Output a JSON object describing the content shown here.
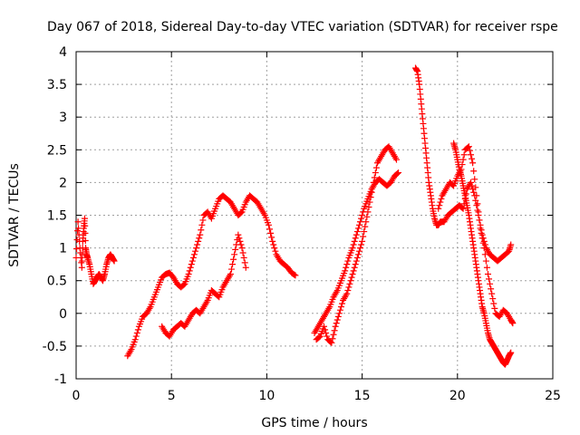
{
  "chart_data": {
    "type": "scatter",
    "title": "Day 067 of 2018, Sidereal Day-to-day VTEC variation (SDTVAR) for receiver rspe",
    "xlabel": "GPS time / hours",
    "ylabel": "SDTVAR / TECUs",
    "xlim": [
      0,
      25
    ],
    "ylim": [
      -1,
      4
    ],
    "xticks": [
      0,
      5,
      10,
      15,
      20,
      25
    ],
    "xtick_labels": [
      "0",
      "5",
      "10",
      "15",
      "20",
      "25"
    ],
    "yticks": [
      -1,
      -0.5,
      0,
      0.5,
      1,
      1.5,
      2,
      2.5,
      3,
      3.5,
      4
    ],
    "ytick_labels": [
      "-1",
      "-0.5",
      "0",
      "0.5",
      "1",
      "1.5",
      "2",
      "2.5",
      "3",
      "3.5",
      "4"
    ],
    "grid": true,
    "marker": "plus",
    "color": "#ff0000",
    "series": [
      {
        "name": "s1",
        "x": [
          0.0,
          0.1,
          0.2,
          0.3,
          0.35,
          0.4,
          0.45,
          0.5,
          0.55,
          0.6,
          0.7,
          0.8,
          0.9,
          1.0,
          1.1,
          1.2,
          1.3,
          1.4,
          1.5,
          1.6,
          1.7,
          1.8,
          1.9,
          2.0
        ],
        "y": [
          0.85,
          1.4,
          1.0,
          0.7,
          1.1,
          1.3,
          1.45,
          1.0,
          0.9,
          0.85,
          0.75,
          0.6,
          0.45,
          0.5,
          0.55,
          0.6,
          0.55,
          0.5,
          0.6,
          0.75,
          0.85,
          0.9,
          0.85,
          0.8
        ]
      },
      {
        "name": "s2",
        "x": [
          2.7,
          2.9,
          3.1,
          3.3,
          3.5,
          3.7,
          3.9,
          4.1,
          4.3,
          4.5,
          4.7,
          4.9,
          5.1,
          5.3,
          5.5,
          5.7,
          5.9,
          6.1,
          6.3,
          6.5,
          6.7,
          6.9,
          7.1,
          7.3,
          7.5,
          7.7,
          7.9,
          8.1,
          8.3,
          8.5,
          8.7,
          8.9,
          9.1,
          9.3,
          9.5,
          9.7,
          9.9,
          10.1,
          10.3,
          10.5,
          10.7,
          10.9,
          11.1,
          11.3,
          11.5
        ],
        "y": [
          -0.65,
          -0.55,
          -0.4,
          -0.2,
          -0.05,
          0.0,
          0.1,
          0.25,
          0.4,
          0.55,
          0.6,
          0.62,
          0.55,
          0.45,
          0.4,
          0.45,
          0.6,
          0.8,
          1.0,
          1.2,
          1.5,
          1.55,
          1.45,
          1.6,
          1.75,
          1.8,
          1.75,
          1.7,
          1.6,
          1.5,
          1.55,
          1.7,
          1.8,
          1.75,
          1.7,
          1.6,
          1.5,
          1.35,
          1.1,
          0.9,
          0.8,
          0.75,
          0.7,
          0.62,
          0.58
        ]
      },
      {
        "name": "s3",
        "x": [
          4.5,
          4.7,
          4.9,
          5.1,
          5.3,
          5.5,
          5.7,
          5.9,
          6.1,
          6.3,
          6.5,
          6.7,
          6.9,
          7.1,
          7.3,
          7.5,
          7.7,
          7.9,
          8.1,
          8.3,
          8.5,
          8.7,
          8.9
        ],
        "y": [
          -0.2,
          -0.3,
          -0.35,
          -0.25,
          -0.2,
          -0.15,
          -0.2,
          -0.1,
          0.0,
          0.05,
          0.0,
          0.1,
          0.2,
          0.35,
          0.3,
          0.25,
          0.4,
          0.5,
          0.6,
          0.9,
          1.2,
          1.0,
          0.7
        ]
      },
      {
        "name": "s4",
        "x": [
          12.5,
          12.7,
          12.9,
          13.1,
          13.3,
          13.5,
          13.7,
          13.9,
          14.1,
          14.3,
          14.5,
          14.7,
          14.9,
          15.1,
          15.3,
          15.5,
          15.7,
          15.9,
          16.1,
          16.3,
          16.5,
          16.7,
          16.9
        ],
        "y": [
          -0.3,
          -0.2,
          -0.1,
          0.0,
          0.1,
          0.25,
          0.35,
          0.5,
          0.65,
          0.85,
          1.0,
          1.2,
          1.4,
          1.6,
          1.75,
          1.9,
          2.0,
          2.05,
          2.0,
          1.95,
          2.0,
          2.1,
          2.15
        ]
      },
      {
        "name": "s5",
        "x": [
          12.6,
          12.8,
          13.0,
          13.2,
          13.4,
          13.6,
          13.8,
          14.0,
          14.2,
          14.4,
          14.6,
          14.8,
          15.0,
          15.2,
          15.4,
          15.6,
          15.8,
          16.0,
          16.2,
          16.4,
          16.6,
          16.8
        ],
        "y": [
          -0.4,
          -0.35,
          -0.2,
          -0.4,
          -0.45,
          -0.2,
          0.0,
          0.2,
          0.3,
          0.5,
          0.7,
          0.9,
          1.1,
          1.4,
          1.7,
          2.0,
          2.3,
          2.4,
          2.5,
          2.55,
          2.45,
          2.35
        ]
      },
      {
        "name": "s6",
        "x": [
          17.8,
          17.9,
          18.0,
          18.1,
          18.2,
          18.3,
          18.4,
          18.5,
          18.6,
          18.7,
          18.8,
          18.9,
          19.0,
          19.1,
          19.3,
          19.5,
          19.7,
          19.9,
          20.1,
          20.3,
          20.5,
          20.7,
          20.9,
          21.1,
          21.3,
          21.5,
          21.7,
          21.9,
          22.1,
          22.3,
          22.5,
          22.7,
          22.8
        ],
        "y": [
          3.75,
          3.7,
          3.5,
          3.2,
          2.9,
          2.6,
          2.3,
          2.0,
          1.8,
          1.6,
          1.45,
          1.35,
          1.35,
          1.4,
          1.4,
          1.5,
          1.55,
          1.6,
          1.65,
          1.6,
          1.9,
          2.0,
          1.8,
          1.5,
          1.2,
          1.0,
          0.9,
          0.85,
          0.8,
          0.85,
          0.9,
          0.95,
          1.05
        ]
      },
      {
        "name": "s7",
        "x": [
          19.0,
          19.2,
          19.4,
          19.6,
          19.8,
          20.0,
          20.2,
          20.4,
          20.6,
          20.8,
          21.0,
          21.2,
          21.4,
          21.6,
          21.8,
          22.0,
          22.2,
          22.4,
          22.6,
          22.8,
          22.9
        ],
        "y": [
          1.6,
          1.8,
          1.9,
          2.0,
          1.95,
          2.1,
          2.2,
          2.5,
          2.55,
          2.3,
          1.8,
          1.3,
          1.0,
          0.6,
          0.3,
          0.0,
          -0.05,
          0.05,
          0.0,
          -0.1,
          -0.15
        ]
      },
      {
        "name": "s8",
        "x": [
          19.8,
          19.9,
          20.0,
          20.1,
          20.2,
          20.3,
          20.4,
          20.5,
          20.6,
          20.7,
          20.8,
          20.9,
          21.0,
          21.1,
          21.2,
          21.3,
          21.4,
          21.5,
          21.6,
          21.7,
          21.8,
          21.9,
          22.0,
          22.1,
          22.2,
          22.3,
          22.4,
          22.5,
          22.6,
          22.7,
          22.8
        ],
        "y": [
          2.6,
          2.5,
          2.35,
          2.2,
          2.1,
          1.95,
          1.8,
          1.65,
          1.5,
          1.3,
          1.1,
          0.9,
          0.7,
          0.5,
          0.3,
          0.1,
          0.0,
          -0.15,
          -0.3,
          -0.4,
          -0.45,
          -0.5,
          -0.55,
          -0.6,
          -0.65,
          -0.7,
          -0.75,
          -0.78,
          -0.72,
          -0.65,
          -0.6
        ]
      }
    ]
  }
}
